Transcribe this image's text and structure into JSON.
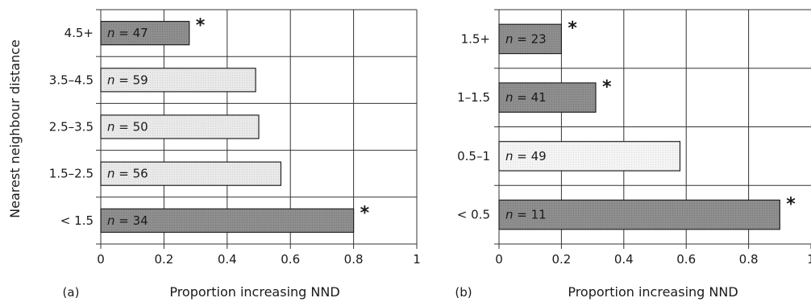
{
  "figure": {
    "ylabel": "Nearest neighbour distance"
  },
  "colors": {
    "significant": "#8e8e8e",
    "nonsignificant": "#e9e9e9",
    "panel_b_third": "#f4f4f4"
  },
  "chart_data": [
    {
      "type": "bar",
      "orientation": "horizontal",
      "panel_label": "(a)",
      "xlabel": "Proportion increasing NND",
      "ylabel": "Nearest neighbour distance",
      "xlim": [
        0,
        1
      ],
      "xticks": [
        "0",
        "0.2",
        "0.4",
        "0.6",
        "0.8",
        "1"
      ],
      "categories": [
        "4.5+",
        "3.5–4.5",
        "2.5–3.5",
        "1.5–2.5",
        "< 1.5"
      ],
      "values": [
        0.28,
        0.49,
        0.5,
        0.57,
        0.8
      ],
      "n_prefix": "n",
      "n_values": [
        "47",
        "59",
        "50",
        "56",
        "34"
      ],
      "significant": [
        true,
        false,
        false,
        false,
        true
      ],
      "marker": "*",
      "grid": true
    },
    {
      "type": "bar",
      "orientation": "horizontal",
      "panel_label": "(b)",
      "xlabel": "Proportion increasing NND",
      "xlim": [
        0,
        1
      ],
      "xticks": [
        "0",
        "0.2",
        "0.4",
        "0.6",
        "0.8",
        "1"
      ],
      "categories": [
        "1.5+",
        "1–1.5",
        "0.5–1",
        "< 0.5"
      ],
      "values": [
        0.2,
        0.31,
        0.58,
        0.9
      ],
      "n_prefix": "n",
      "n_values": [
        "23",
        "41",
        "49",
        "11"
      ],
      "significant": [
        true,
        true,
        false,
        true
      ],
      "marker": "*",
      "grid": true
    }
  ]
}
